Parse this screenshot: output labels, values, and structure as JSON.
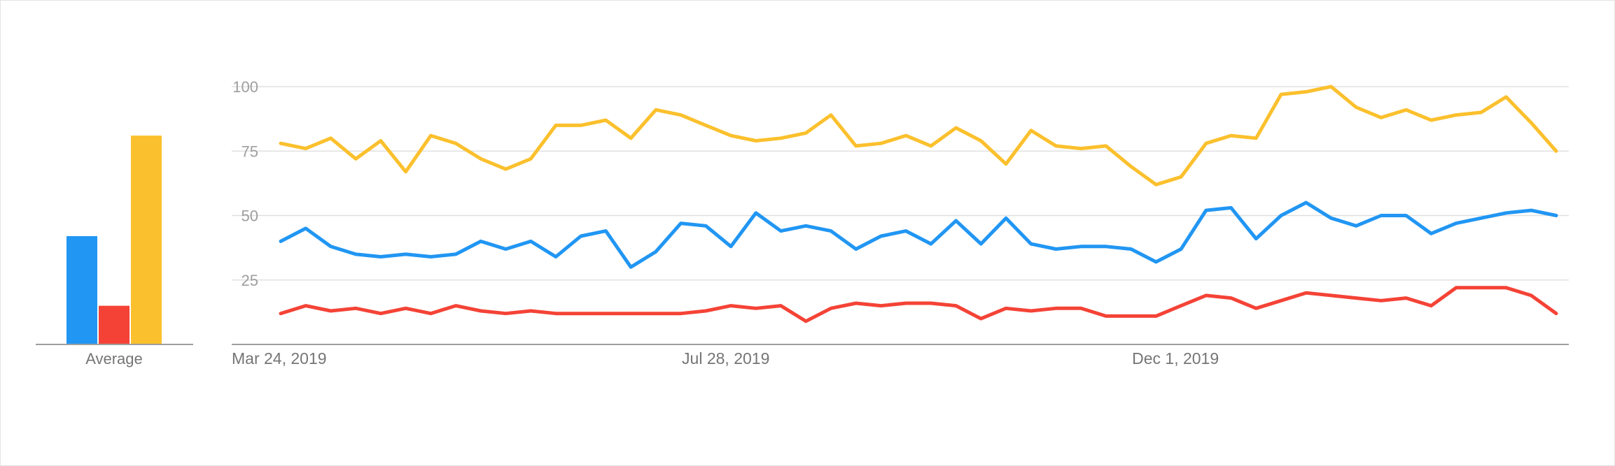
{
  "chart_data": {
    "type": "line",
    "title": "",
    "xlabel": "",
    "ylabel": "",
    "ylim": [
      0,
      100
    ],
    "yticks": [
      100,
      75,
      50,
      25
    ],
    "ytick_labels": [
      "100",
      "75",
      "50",
      "25"
    ],
    "xtick_labels": [
      "Mar 24, 2019",
      "Jul 28, 2019",
      "Dec 1, 2019"
    ],
    "xtick_index": [
      0,
      18,
      36
    ],
    "grid": true,
    "legend": "none",
    "series": [
      {
        "color": "#FBC02D",
        "values": [
          78,
          76,
          80,
          72,
          79,
          67,
          81,
          78,
          72,
          68,
          72,
          85,
          85,
          87,
          80,
          91,
          89,
          85,
          81,
          79,
          80,
          82,
          89,
          77,
          78,
          81,
          77,
          84,
          79,
          70,
          83,
          77,
          76,
          77,
          69,
          62,
          65,
          78,
          81,
          80,
          97,
          98,
          100,
          92,
          88,
          91,
          87,
          89,
          90,
          96,
          86,
          75
        ]
      },
      {
        "color": "#2196F3",
        "values": [
          40,
          45,
          38,
          35,
          34,
          35,
          34,
          35,
          40,
          37,
          40,
          34,
          42,
          44,
          30,
          36,
          47,
          46,
          38,
          51,
          44,
          46,
          44,
          37,
          42,
          44,
          39,
          48,
          39,
          49,
          39,
          37,
          38,
          38,
          37,
          32,
          37,
          52,
          53,
          41,
          50,
          55,
          49,
          46,
          50,
          50,
          43,
          47,
          49,
          51,
          52,
          50
        ]
      },
      {
        "color": "#F44336",
        "values": [
          12,
          15,
          13,
          14,
          12,
          14,
          12,
          15,
          13,
          12,
          13,
          12,
          12,
          12,
          12,
          12,
          12,
          13,
          15,
          14,
          15,
          9,
          14,
          16,
          15,
          16,
          16,
          15,
          10,
          14,
          13,
          14,
          14,
          11,
          11,
          11,
          15,
          19,
          18,
          14,
          17,
          20,
          19,
          18,
          17,
          18,
          15,
          22,
          22,
          22,
          19,
          12
        ]
      }
    ],
    "average": {
      "label": "Average",
      "bars": [
        {
          "color": "#2196F3",
          "value": 42
        },
        {
          "color": "#F44336",
          "value": 15
        },
        {
          "color": "#FBC02D",
          "value": 81
        }
      ]
    }
  }
}
